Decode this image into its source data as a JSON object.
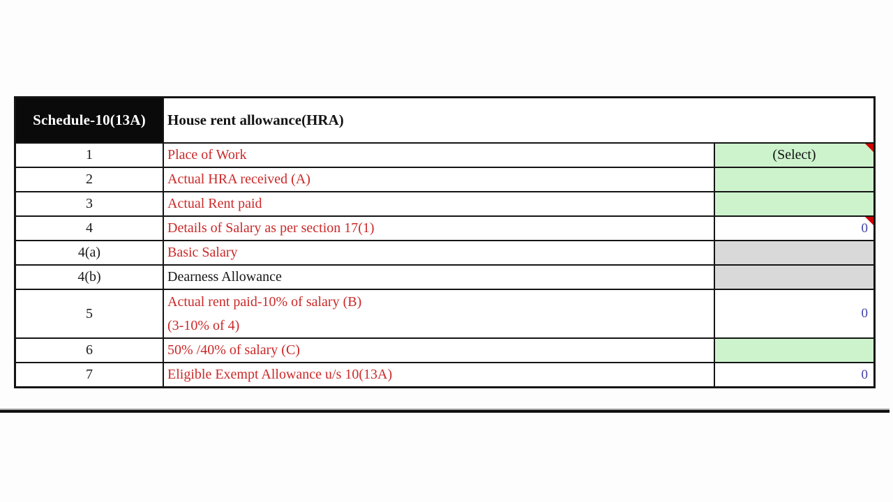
{
  "header": {
    "schedule_code": "Schedule-10(13A)",
    "title": "House rent allowance(HRA)"
  },
  "colors": {
    "header_bg": "#0a0a0a",
    "header_text": "#ffffff",
    "label_red": "#cb2828",
    "label_black": "#161616",
    "value_blue": "#4040a8",
    "input_green": "#cdf3cd",
    "readonly_gray": "#d9d9d9",
    "border_black": "#141414",
    "comment_red": "#cc0000"
  },
  "rows": [
    {
      "num": "1",
      "name": "place-of-work",
      "label": "Place of Work",
      "label_color": "red",
      "value": "(Select)",
      "cell_style": "green",
      "value_style": "select",
      "comment": true,
      "tall": false
    },
    {
      "num": "2",
      "name": "actual-hra-received",
      "label": "Actual HRA received (A)",
      "label_color": "red",
      "value": "",
      "cell_style": "green",
      "value_style": "",
      "comment": false,
      "tall": false
    },
    {
      "num": "3",
      "name": "actual-rent-paid",
      "label": "Actual Rent paid",
      "label_color": "red",
      "value": "",
      "cell_style": "green",
      "value_style": "",
      "comment": false,
      "tall": false
    },
    {
      "num": "4",
      "name": "salary-details-section-17-1",
      "label": "Details of Salary as per section 17(1)",
      "label_color": "red",
      "value": "0",
      "cell_style": "white",
      "value_style": "number",
      "comment": true,
      "tall": false
    },
    {
      "num": "4(a)",
      "name": "basic-salary",
      "label": "Basic Salary",
      "label_color": "red",
      "value": "",
      "cell_style": "gray",
      "value_style": "",
      "comment": false,
      "tall": false
    },
    {
      "num": "4(b)",
      "name": "dearness-allowance",
      "label": "Dearness Allowance",
      "label_color": "black",
      "value": "",
      "cell_style": "gray",
      "value_style": "",
      "comment": false,
      "tall": false
    },
    {
      "num": "5",
      "name": "rent-paid-minus-10pct-salary",
      "label": "Actual rent paid-10% of salary (B)",
      "label_line2": "(3-10% of 4)",
      "label_color": "red",
      "value": "0",
      "cell_style": "white",
      "value_style": "number",
      "comment": false,
      "tall": true
    },
    {
      "num": "6",
      "name": "fifty-forty-pct-of-salary",
      "label": "50% /40% of salary (C)",
      "label_color": "red",
      "value": "",
      "cell_style": "green",
      "value_style": "",
      "comment": false,
      "tall": false
    },
    {
      "num": "7",
      "name": "eligible-exempt-allowance",
      "label": "Eligible Exempt Allowance u/s 10(13A)",
      "label_color": "red",
      "value": "0",
      "cell_style": "white",
      "value_style": "number",
      "comment": false,
      "tall": false
    }
  ]
}
